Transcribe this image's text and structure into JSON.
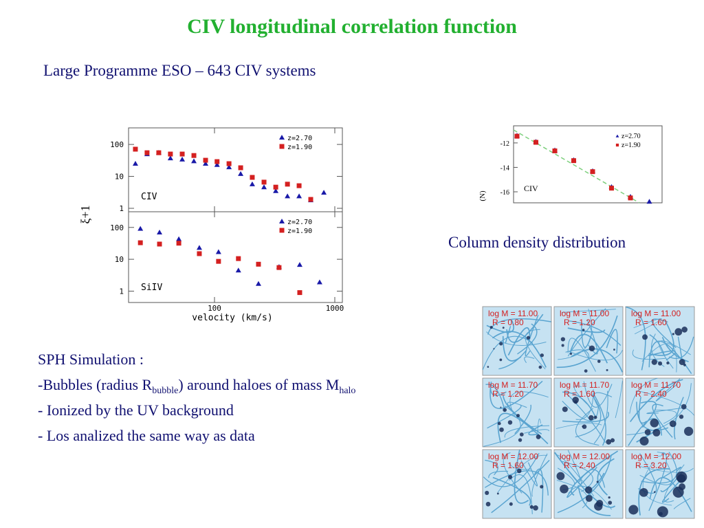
{
  "title": "CIV longitudinal correlation function",
  "subtitle": "Large Programme ESO – 643 CIV systems",
  "correlation_plot": {
    "type": "scatter",
    "xlabel": "velocity (km/s)",
    "ylabel": "ξ+1",
    "xscale": "log",
    "xlim": [
      19.3,
      1156
    ],
    "xticks": [
      100,
      1000
    ],
    "panels": [
      {
        "label": "CIV",
        "yscale": "log",
        "ylim": [
          0.78,
          330
        ],
        "yticks": [
          1,
          10,
          100
        ],
        "series": [
          {
            "name": "z=2.70",
            "color": "#1a1aa8",
            "marker": "triangle",
            "x": [
              22,
              27.5,
              34.4,
              43,
              53.9,
              67.4,
              84.3,
              105,
              132,
              165,
              206,
              258,
              323,
              404,
              505,
              631,
              811
            ],
            "values": [
              25,
              50,
              55,
              37,
              34,
              30,
              25,
              23,
              19.5,
              12,
              5.7,
              4.6,
              3.5,
              2.4,
              2.4,
              1.8,
              3.1
            ]
          },
          {
            "name": "z=1.90",
            "color": "#d42020",
            "marker": "square",
            "x": [
              22,
              27.5,
              34.4,
              43,
              53.9,
              67.4,
              84.3,
              105,
              132,
              165,
              206,
              258,
              323,
              404,
              505,
              631
            ],
            "values": [
              71,
              55,
              55,
              50,
              50,
              45,
              32,
              29,
              25,
              18.6,
              9.3,
              6.6,
              4.6,
              5.7,
              5.1,
              1.9
            ]
          }
        ]
      },
      {
        "label": "SiIV",
        "yscale": "log",
        "ylim": [
          0.44,
          310
        ],
        "yticks": [
          1,
          10,
          100
        ],
        "series": [
          {
            "name": "z=2.70",
            "color": "#1a1aa8",
            "marker": "triangle",
            "x": [
              24.2,
              34.9,
              50.5,
              74.8,
              108,
              158,
              232,
              344,
              511,
              748
            ],
            "values": [
              91,
              70,
              43,
              23,
              17,
              4.5,
              1.7,
              5.8,
              6.7,
              1.9
            ]
          },
          {
            "name": "z=1.90",
            "color": "#d42020",
            "marker": "square",
            "x": [
              24.2,
              34.9,
              50.5,
              74.8,
              108,
              158,
              232,
              344,
              511
            ],
            "values": [
              33,
              30,
              32,
              15,
              8.6,
              10.5,
              7,
              5.5,
              0.9
            ]
          }
        ]
      }
    ]
  },
  "column_density_plot": {
    "type": "scatter",
    "ylabel": "(N)",
    "label": "CIV",
    "ylim": [
      -10.6,
      -16.9
    ],
    "yticks": [
      -12,
      -14,
      -16
    ],
    "series": [
      {
        "name": "z=2.70",
        "color": "#1a1aa8",
        "marker": "triangle",
        "values": [
          -11.4,
          -11.9,
          -12.6,
          -13.4,
          -14.3,
          -15.6,
          -16.4,
          -16.8
        ]
      },
      {
        "name": "z=1.90",
        "color": "#d42020",
        "marker": "square",
        "values": [
          -11.45,
          -11.95,
          -12.65,
          -13.45,
          -14.35,
          -15.7,
          -16.5
        ]
      }
    ]
  },
  "caption": "Column density distribution",
  "sph": {
    "heading": "SPH Simulation :",
    "bubbles": [
      "-Bubbles (radius R",
      "bubble",
      ") around haloes of mass M",
      "halo"
    ],
    "lines": [
      "- Ionized by the UV background",
      "- Los analized the same way as data"
    ]
  },
  "simulations": [
    {
      "mass": "log M = 11.00",
      "radius": "R = 0.80"
    },
    {
      "mass": "log M = 11.00",
      "radius": "R = 1.20"
    },
    {
      "mass": "log M = 11.00",
      "radius": "R = 1.60"
    },
    {
      "mass": "log M = 11.70",
      "radius": "R = 1.20"
    },
    {
      "mass": "log M = 11.70",
      "radius": "R = 1.60"
    },
    {
      "mass": "log M = 11.70",
      "radius": "R = 2.40"
    },
    {
      "mass": "log M = 12.00",
      "radius": "R = 1.60"
    },
    {
      "mass": "log M = 12.00",
      "radius": "R = 2.40"
    },
    {
      "mass": "log M = 12.00",
      "radius": "R = 3.20"
    }
  ]
}
